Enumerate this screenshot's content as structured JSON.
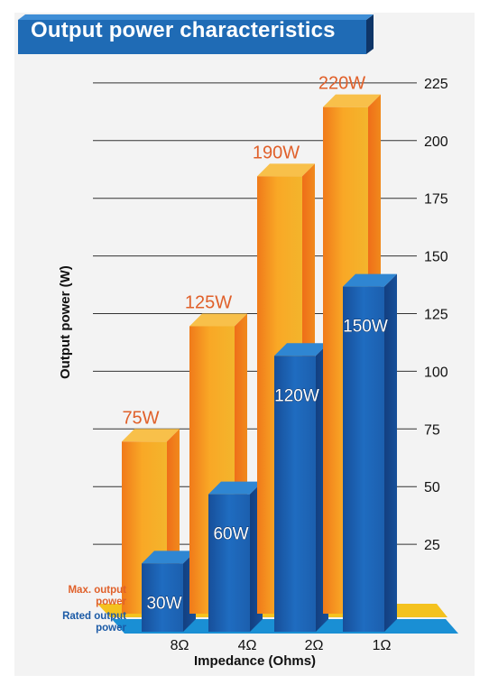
{
  "title": "Output power characteristics",
  "chart_data": {
    "type": "bar",
    "title": "Output power characteristics",
    "xlabel": "Impedance (Ohms)",
    "ylabel": "Output power (W)",
    "categories": [
      "8Ω",
      "4Ω",
      "2Ω",
      "1Ω"
    ],
    "yticks": [
      25,
      50,
      75,
      100,
      125,
      150,
      175,
      200,
      225
    ],
    "ylim": [
      0,
      225
    ],
    "grid": true,
    "series": [
      {
        "name": "Max. output power",
        "values": [
          75,
          125,
          190,
          220
        ],
        "labels": [
          "75W",
          "125W",
          "190W",
          "220W"
        ],
        "color": "#f39a1e"
      },
      {
        "name": "Rated output power",
        "values": [
          30,
          60,
          120,
          150
        ],
        "labels": [
          "30W",
          "60W",
          "120W",
          "150W"
        ],
        "color": "#1b5aa6"
      }
    ]
  },
  "legend": {
    "max_line1": "Max. output",
    "max_line2": "power",
    "rated_line1": "Rated output",
    "rated_line2": "power"
  },
  "colors": {
    "title_bg": "#1f6bb5",
    "orange": "#f39a1e",
    "blue": "#1b5aa6",
    "max_label": "#e0602a",
    "platform_top": "#f4c21f",
    "platform_blue": "#1a8fd4"
  }
}
